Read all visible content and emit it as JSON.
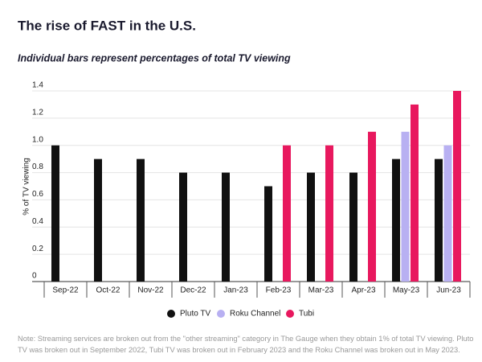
{
  "chart_data": {
    "type": "bar",
    "title": "The rise of FAST in the U.S.",
    "subtitle": "Individual bars represent percentages of total TV viewing",
    "y_label": "% of TV viewing",
    "categories": [
      "Sep-22",
      "Oct-22",
      "Nov-22",
      "Dec-22",
      "Jan-23",
      "Feb-23",
      "Mar-23",
      "Apr-23",
      "May-23",
      "Jun-23"
    ],
    "series": [
      {
        "name": "Pluto TV",
        "color": "#111111",
        "values": [
          1.0,
          0.9,
          0.9,
          0.8,
          0.8,
          0.7,
          0.8,
          0.8,
          0.9,
          0.9
        ]
      },
      {
        "name": "Roku Channel",
        "color": "#b8b0f2",
        "values": [
          null,
          null,
          null,
          null,
          null,
          null,
          null,
          null,
          1.1,
          1.0
        ]
      },
      {
        "name": "Tubi",
        "color": "#e8185e",
        "values": [
          null,
          null,
          null,
          null,
          null,
          1.0,
          1.0,
          1.1,
          1.3,
          1.4
        ]
      }
    ],
    "ylim": [
      0,
      1.4
    ],
    "yticks": [
      0,
      0.2,
      0.4,
      0.6,
      0.8,
      {
        "value": 1,
        "label": "1.0"
      },
      1.2,
      1.4
    ],
    "grid": true,
    "legend": "bottom",
    "note": "Note: Streaming services are broken out from the \"other streaming\" category in The Gauge when they obtain 1% of total TV viewing. Pluto TV was broken out in September 2022, Tubi TV was broken out in February 2023 and the Roku Channel was broken out in May 2023."
  }
}
